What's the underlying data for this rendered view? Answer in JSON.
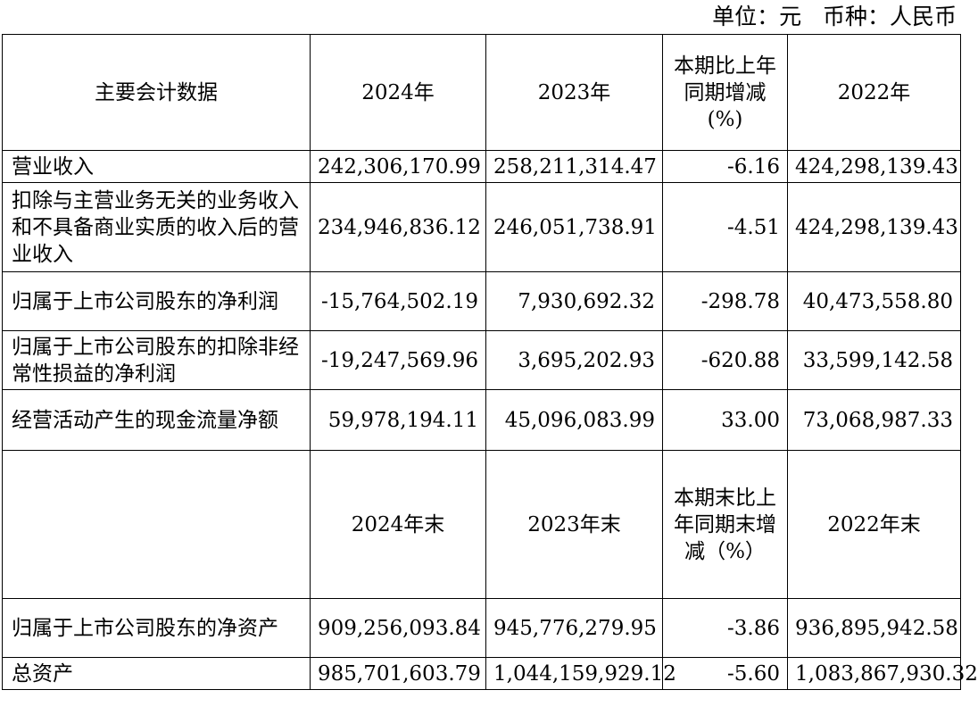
{
  "unit_line": "单位：元   币种：人民币",
  "table": {
    "header1": {
      "label": "主要会计数据",
      "y2024": "2024年",
      "y2023": "2023年",
      "change": "本期比上年同期增减(%)",
      "y2022": "2022年"
    },
    "rows1": [
      {
        "label": "营业收入",
        "y2024": "242,306,170.99",
        "y2023": "258,211,314.47",
        "change": "-6.16",
        "y2022": "424,298,139.43"
      },
      {
        "label": "扣除与主营业务无关的业务收入和不具备商业实质的收入后的营业收入",
        "y2024": "234,946,836.12",
        "y2023": "246,051,738.91",
        "change": "-4.51",
        "y2022": "424,298,139.43"
      },
      {
        "label": "归属于上市公司股东的净利润",
        "y2024": "-15,764,502.19",
        "y2023": "7,930,692.32",
        "change": "-298.78",
        "y2022": "40,473,558.80"
      },
      {
        "label": "归属于上市公司股东的扣除非经常性损益的净利润",
        "y2024": "-19,247,569.96",
        "y2023": "3,695,202.93",
        "change": "-620.88",
        "y2022": "33,599,142.58"
      },
      {
        "label": "经营活动产生的现金流量净额",
        "y2024": "59,978,194.11",
        "y2023": "45,096,083.99",
        "change": "33.00",
        "y2022": "73,068,987.33"
      }
    ],
    "header2": {
      "label": "",
      "y2024": "2024年末",
      "y2023": "2023年末",
      "change": "本期末比上年同期末增减（%）",
      "y2022": "2022年末"
    },
    "rows2": [
      {
        "label": "归属于上市公司股东的净资产",
        "y2024": "909,256,093.84",
        "y2023": "945,776,279.95",
        "change": "-3.86",
        "y2022": "936,895,942.58"
      },
      {
        "label": "总资产",
        "y2024": "985,701,603.79",
        "y2023": "1,044,159,929.12",
        "change": "-5.60",
        "y2022": "1,083,867,930.32"
      }
    ]
  }
}
